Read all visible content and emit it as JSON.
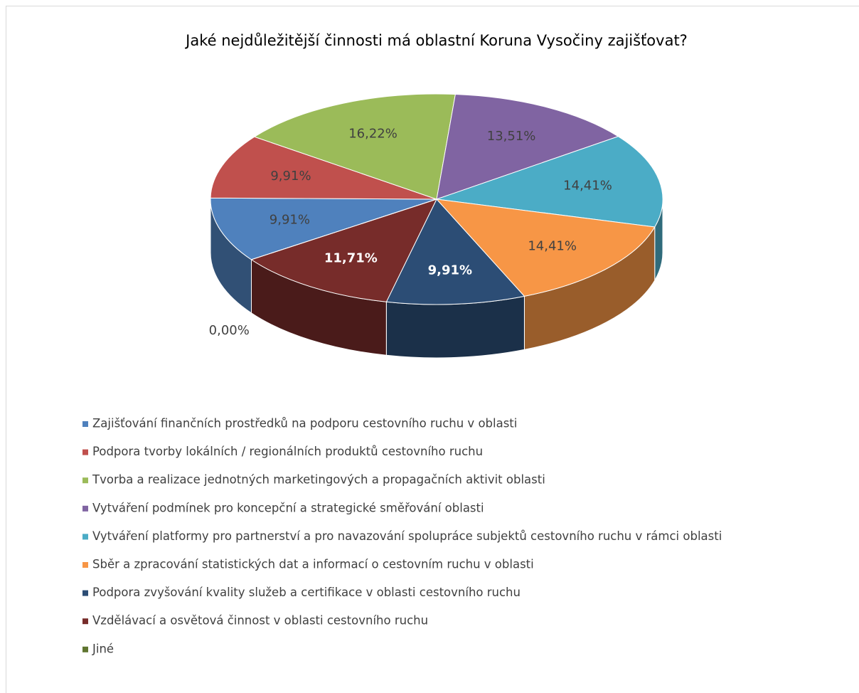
{
  "chart_data": {
    "type": "pie",
    "title": "Jaké nejdůležitější činnosti má oblastní Koruna Vysočiny zajišťovat?",
    "categories": [
      "Zajišťování finančních prostředků na podporu cestovního ruchu v oblasti",
      "Podpora tvorby lokálních / regionálních produktů cestovního ruchu",
      "Tvorba a realizace jednotných marketingových a propagačních aktivit oblasti",
      "Vytváření podmínek pro koncepční a strategické směřování oblasti",
      "Vytváření platformy pro partnerství a pro navazování spolupráce subjektů cestovního ruchu v rámci oblasti",
      "Sběr a zpracování statistických dat a informací o cestovním ruchu v oblasti",
      "Podpora zvyšování kvality služeb a certifikace v oblasti cestovního ruchu",
      "Vzdělávací a osvětová činnost v oblasti cestovního ruchu",
      "Jiné"
    ],
    "values": [
      9.91,
      9.91,
      16.22,
      13.51,
      14.41,
      14.41,
      9.91,
      11.71,
      0.0
    ],
    "value_labels": [
      "9,91%",
      "9,91%",
      "16,22%",
      "13,51%",
      "14,41%",
      "14,41%",
      "9,91%",
      "11,71%",
      "0,00%"
    ],
    "colors": [
      "#4f81bd",
      "#c0504d",
      "#9bbb59",
      "#8064a2",
      "#4bacc6",
      "#f79646",
      "#2c4d75",
      "#772c2a",
      "#5f7530"
    ],
    "legend": "bottom"
  }
}
